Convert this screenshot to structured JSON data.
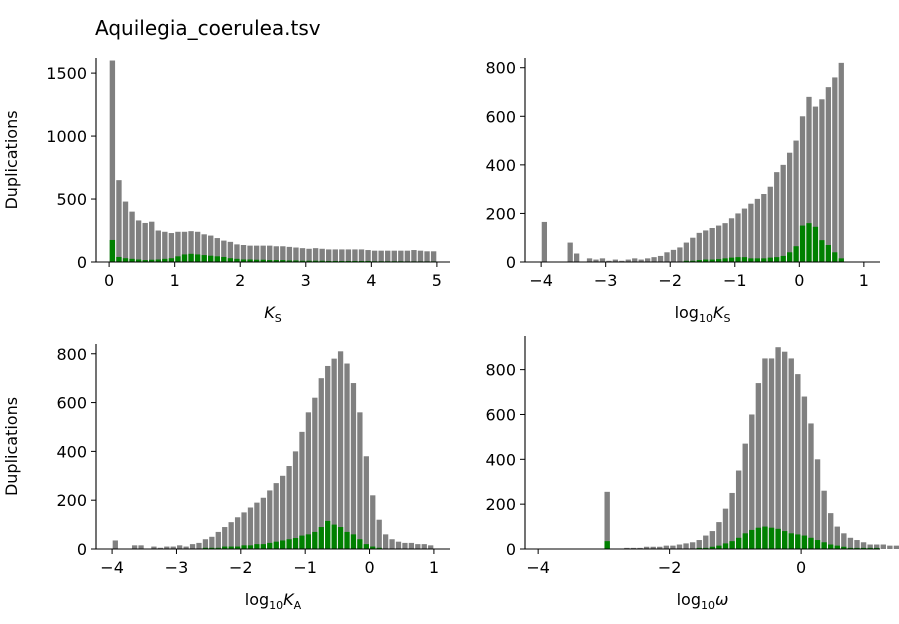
{
  "figure_title": "Aquilegia_coerulea.tsv",
  "colors": {
    "all": "#808080",
    "anchor": "#008000"
  },
  "chart_data": [
    {
      "type": "bar",
      "xlabel": {
        "base": "K",
        "sub": "S"
      },
      "ylabel": "Duplications",
      "xlim": [
        -0.2,
        5.2
      ],
      "ylim": [
        0,
        1620
      ],
      "xticks": [
        0,
        1,
        2,
        3,
        4,
        5
      ],
      "yticks": [
        0,
        500,
        1000,
        1500
      ],
      "bin_start": 0.0,
      "bin_width": 0.1,
      "series": [
        {
          "values": [
            1600,
            650,
            480,
            400,
            330,
            310,
            320,
            250,
            240,
            230,
            240,
            240,
            245,
            240,
            220,
            210,
            190,
            170,
            160,
            140,
            135,
            130,
            130,
            130,
            130,
            125,
            125,
            120,
            115,
            110,
            105,
            110,
            105,
            100,
            100,
            100,
            100,
            100,
            100,
            95,
            90,
            90,
            90,
            90,
            90,
            90,
            95,
            90,
            85,
            85
          ]
        },
        {
          "values": [
            175,
            40,
            30,
            25,
            20,
            15,
            18,
            20,
            25,
            30,
            45,
            60,
            65,
            60,
            55,
            50,
            45,
            40,
            30,
            25,
            20,
            20,
            18,
            18,
            15,
            15,
            15,
            12,
            12,
            10,
            10,
            10,
            10,
            8,
            8,
            8,
            8,
            8,
            8,
            8,
            6,
            6,
            6,
            6,
            6,
            5,
            5,
            5,
            5,
            5
          ]
        }
      ]
    },
    {
      "type": "bar",
      "xlabel": {
        "base": "log",
        "sub": "10",
        "base2": "K",
        "sub2": "S"
      },
      "ylabel": "",
      "xlim": [
        -4.25,
        1.25
      ],
      "ylim": [
        0,
        840
      ],
      "xticks": [
        -4,
        -3,
        -2,
        -1,
        0,
        1
      ],
      "yticks": [
        0,
        200,
        400,
        600,
        800
      ],
      "bin_start": -4.0,
      "bin_width": 0.1,
      "series": [
        {
          "values": [
            165,
            0,
            0,
            0,
            80,
            35,
            0,
            15,
            10,
            15,
            5,
            10,
            5,
            10,
            15,
            10,
            15,
            20,
            25,
            40,
            50,
            60,
            80,
            100,
            120,
            130,
            140,
            150,
            160,
            180,
            200,
            220,
            240,
            260,
            280,
            310,
            370,
            400,
            450,
            500,
            600,
            680,
            640,
            670,
            720,
            760,
            820
          ]
        },
        {
          "values": [
            0,
            0,
            0,
            0,
            0,
            0,
            0,
            0,
            0,
            0,
            0,
            0,
            0,
            0,
            0,
            0,
            0,
            0,
            0,
            0,
            0,
            0,
            5,
            5,
            8,
            10,
            10,
            12,
            15,
            18,
            20,
            20,
            15,
            15,
            15,
            18,
            20,
            25,
            40,
            65,
            150,
            160,
            145,
            90,
            70,
            40,
            15
          ]
        }
      ]
    },
    {
      "type": "bar",
      "xlabel": {
        "base": "log",
        "sub": "10",
        "base2": "K",
        "sub2": "A"
      },
      "ylabel": "Duplications",
      "xlim": [
        -4.25,
        1.25
      ],
      "ylim": [
        0,
        840
      ],
      "xticks": [
        -4,
        -3,
        -2,
        -1,
        0,
        1
      ],
      "yticks": [
        0,
        200,
        400,
        600,
        800
      ],
      "bin_start": -4.0,
      "bin_width": 0.1,
      "series": [
        {
          "values": [
            35,
            0,
            0,
            15,
            15,
            0,
            10,
            5,
            10,
            10,
            15,
            10,
            20,
            25,
            40,
            50,
            70,
            90,
            110,
            130,
            150,
            170,
            190,
            210,
            240,
            270,
            300,
            340,
            400,
            480,
            560,
            620,
            700,
            750,
            780,
            810,
            760,
            680,
            560,
            380,
            220,
            120,
            60,
            40,
            30,
            25,
            25,
            20,
            20,
            15
          ]
        },
        {
          "values": [
            0,
            0,
            0,
            0,
            0,
            0,
            0,
            0,
            0,
            0,
            0,
            0,
            0,
            0,
            5,
            5,
            5,
            10,
            10,
            10,
            15,
            15,
            20,
            20,
            25,
            30,
            35,
            40,
            45,
            55,
            60,
            70,
            90,
            115,
            100,
            90,
            70,
            60,
            40,
            20,
            10,
            5,
            0,
            0,
            0,
            0,
            0,
            0,
            0,
            0
          ]
        }
      ]
    },
    {
      "type": "bar",
      "xlabel": {
        "base": "log",
        "sub": "10",
        "greek": "ω"
      },
      "ylabel": "",
      "xlim": [
        -4.2,
        1.2
      ],
      "ylim": [
        0,
        950
      ],
      "xticks": [
        -4,
        -2,
        0
      ],
      "yticks": [
        0,
        200,
        400,
        600,
        800
      ],
      "bin_start": -3.0,
      "bin_width": 0.1,
      "series": [
        {
          "values": [
            255,
            0,
            0,
            5,
            5,
            5,
            10,
            10,
            10,
            15,
            15,
            20,
            25,
            30,
            40,
            60,
            80,
            120,
            180,
            250,
            350,
            470,
            600,
            740,
            850,
            850,
            900,
            880,
            850,
            780,
            680,
            560,
            400,
            260,
            160,
            100,
            70,
            50,
            40,
            30,
            20,
            20,
            20,
            15,
            15
          ]
        },
        {
          "values": [
            35,
            0,
            0,
            0,
            0,
            0,
            0,
            0,
            0,
            0,
            0,
            0,
            0,
            0,
            5,
            5,
            10,
            15,
            25,
            35,
            50,
            70,
            85,
            95,
            100,
            95,
            90,
            80,
            70,
            65,
            60,
            50,
            40,
            30,
            20,
            15,
            10,
            5,
            5,
            5,
            5,
            5,
            0,
            0,
            0
          ]
        }
      ]
    }
  ]
}
